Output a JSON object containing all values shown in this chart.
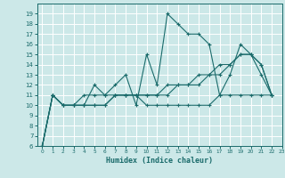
{
  "title": "",
  "xlabel": "Humidex (Indice chaleur)",
  "bg_color": "#cce8e8",
  "grid_color": "#ffffff",
  "line_color": "#1a6b6b",
  "xlim": [
    -0.5,
    23
  ],
  "ylim": [
    6,
    20
  ],
  "yticks": [
    6,
    7,
    8,
    9,
    10,
    11,
    12,
    13,
    14,
    15,
    16,
    17,
    18,
    19
  ],
  "xticks": [
    0,
    1,
    2,
    3,
    4,
    5,
    6,
    7,
    8,
    9,
    10,
    11,
    12,
    13,
    14,
    15,
    16,
    17,
    18,
    19,
    20,
    21,
    22,
    23
  ],
  "series": [
    [
      6,
      11,
      10,
      10,
      10,
      12,
      11,
      12,
      13,
      10,
      15,
      12,
      19,
      18,
      17,
      17,
      16,
      11,
      13,
      16,
      15,
      13,
      11
    ],
    [
      6,
      11,
      10,
      10,
      11,
      11,
      11,
      11,
      11,
      11,
      10,
      10,
      10,
      10,
      10,
      10,
      10,
      11,
      11,
      11,
      11,
      11,
      11
    ],
    [
      6,
      11,
      10,
      10,
      10,
      10,
      10,
      11,
      11,
      11,
      11,
      11,
      11,
      12,
      12,
      13,
      13,
      14,
      14,
      15,
      15,
      14,
      11
    ],
    [
      6,
      11,
      10,
      10,
      10,
      10,
      10,
      11,
      11,
      11,
      11,
      11,
      12,
      12,
      12,
      12,
      13,
      13,
      14,
      15,
      15,
      14,
      11
    ]
  ],
  "x_vals": [
    0,
    1,
    2,
    3,
    4,
    5,
    6,
    7,
    8,
    9,
    10,
    11,
    12,
    13,
    14,
    15,
    16,
    17,
    18,
    19,
    20,
    21,
    22
  ]
}
